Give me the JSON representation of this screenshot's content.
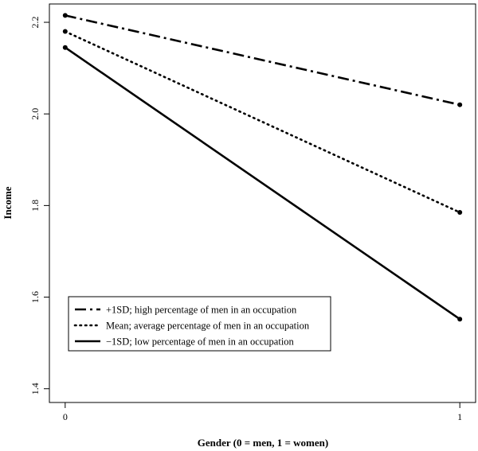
{
  "chart_data": {
    "type": "line",
    "title": "",
    "xlabel": "Gender (0 = men, 1 = women)",
    "ylabel": "Income",
    "x": [
      0,
      1
    ],
    "x_ticks": [
      "0",
      "1"
    ],
    "y_ticks": [
      "1.4",
      "1.6",
      "1.8",
      "2.0",
      "2.2"
    ],
    "xlim": [
      -0.04,
      1.04
    ],
    "ylim": [
      1.37,
      2.24
    ],
    "grid": false,
    "legend_position": "bottom-left",
    "series": [
      {
        "name": "+1SD; high percentage of men in an occupation",
        "values": [
          2.215,
          2.02
        ],
        "dash": "dotdash",
        "color": "#000000"
      },
      {
        "name": "Mean; average percentage of men in an occupation",
        "values": [
          2.18,
          1.785
        ],
        "dash": "dotted",
        "color": "#000000"
      },
      {
        "name": "−1SD; low percentage of men in an occupation",
        "values": [
          2.145,
          1.552
        ],
        "dash": "solid",
        "color": "#000000"
      }
    ]
  }
}
